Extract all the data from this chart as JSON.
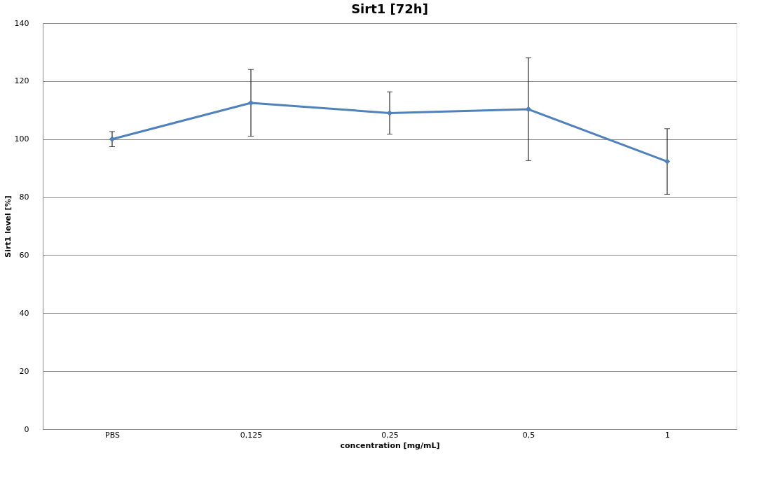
{
  "chart_data": {
    "type": "line",
    "title": "Sirt1  [72h]",
    "xlabel": "concentration [mg/mL]",
    "ylabel": "Sirt1 level [%]",
    "categories": [
      "PBS",
      "0,125",
      "0,25",
      "0,5",
      "1"
    ],
    "series": [
      {
        "color": "#4f81bd",
        "values": [
          100,
          112.5,
          109,
          110.3,
          92.3
        ],
        "errors": [
          2.6,
          11.5,
          7.3,
          17.7,
          11.3
        ]
      }
    ],
    "ylim": [
      0,
      140
    ],
    "yticks": [
      0,
      20,
      40,
      60,
      80,
      100,
      120,
      140
    ],
    "grid": "y",
    "marker": "diamond",
    "line_style": "solid"
  }
}
